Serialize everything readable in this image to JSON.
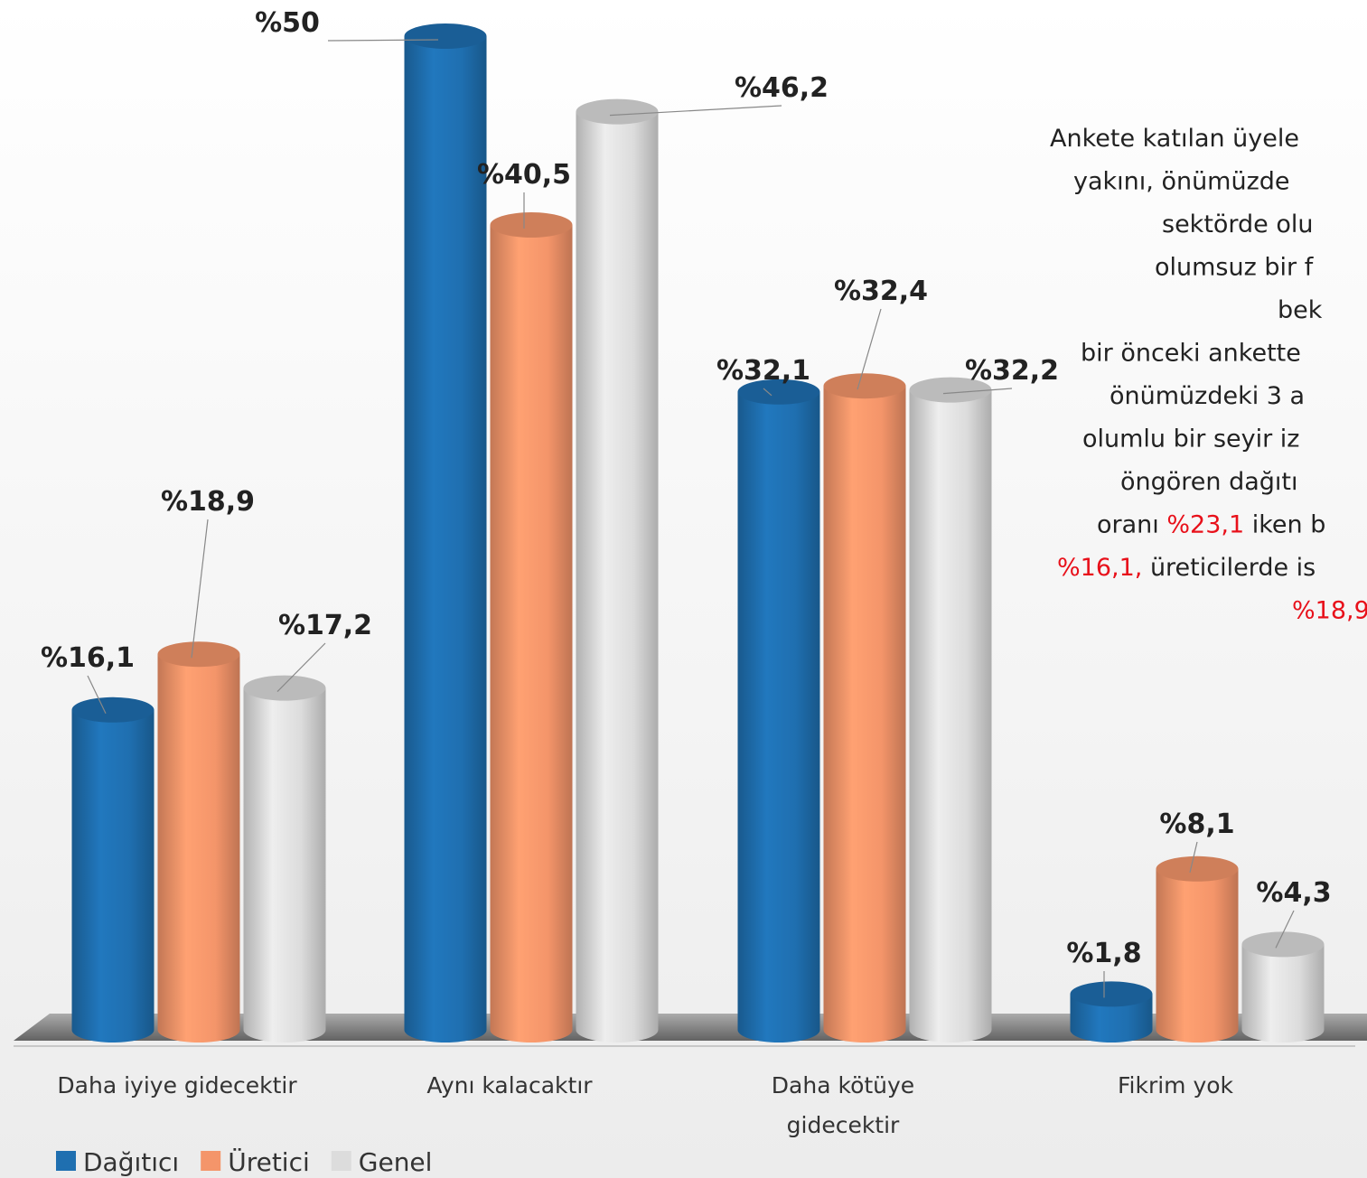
{
  "chart_data": {
    "type": "bar3d",
    "categories": [
      "Daha iyiye gidecektir",
      "Aynı kalacaktır",
      "Daha kötüye gidecektir",
      "Fikrim yok"
    ],
    "series": [
      {
        "name": "Dağıtıcı",
        "color": "#1f6fb0",
        "values": [
          16.1,
          50,
          32.1,
          1.8
        ],
        "value_labels": [
          "%16,1",
          "%50",
          "%32,1",
          "%1,8"
        ]
      },
      {
        "name": "Üretici",
        "color": "#f4956a",
        "values": [
          18.9,
          40.5,
          32.4,
          8.1
        ],
        "value_labels": [
          "%18,9",
          "%40,5",
          "%32,4",
          "%8,1"
        ]
      },
      {
        "name": "Genel",
        "color": "#dcdcdc",
        "values": [
          17.2,
          46.2,
          32.2,
          4.3
        ],
        "value_labels": [
          "%17,2",
          "%46,2",
          "%32,2",
          "%4,3"
        ]
      }
    ],
    "legend": "bottom-left",
    "annotation": {
      "lines": [
        [
          {
            "text": "Ankete katılan üyele",
            "color": "#222222"
          }
        ],
        [
          {
            "text": "yakını, önümüzde",
            "color": "#222222"
          }
        ],
        [
          {
            "text": "sektörde olu",
            "color": "#222222"
          }
        ],
        [
          {
            "text": "olumsuz bir f",
            "color": "#222222"
          }
        ],
        [
          {
            "text": "bek",
            "color": "#222222"
          }
        ],
        [
          {
            "text": "bir önceki ankette",
            "color": "#222222"
          }
        ],
        [
          {
            "text": "önümüzdeki 3 a",
            "color": "#222222"
          }
        ],
        [
          {
            "text": "olumlu bir seyir iz",
            "color": "#222222"
          }
        ],
        [
          {
            "text": "öngören dağıtı",
            "color": "#222222"
          }
        ],
        [
          {
            "text": "oranı ",
            "color": "#222222"
          },
          {
            "text": "%23,1",
            "color": "#e8101a"
          },
          {
            "text": " iken b",
            "color": "#222222"
          }
        ],
        [
          {
            "text": "%16,1,",
            "color": "#e8101a"
          },
          {
            "text": " üreticilerde is",
            "color": "#222222"
          }
        ],
        [
          {
            "text": "%18,9",
            "color": "#e8101a"
          }
        ]
      ]
    }
  }
}
